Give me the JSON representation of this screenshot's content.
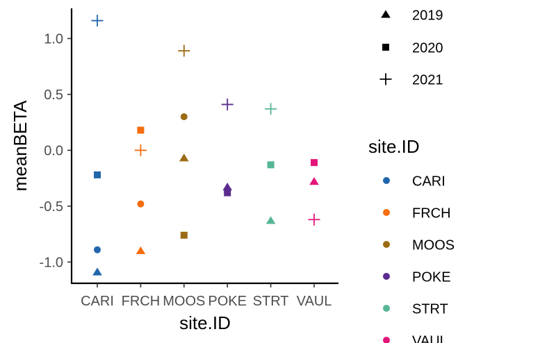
{
  "chart_data": {
    "type": "scatter",
    "xlabel": "site.ID",
    "ylabel": "meanBETA",
    "categories": [
      "CARI",
      "FRCH",
      "MOOS",
      "POKE",
      "STRT",
      "VAUL"
    ],
    "yticks": [
      "-1.0",
      "-0.5",
      "0.0",
      "0.5",
      "1.0"
    ],
    "ytick_values": [
      -1.0,
      -0.5,
      0.0,
      0.5,
      1.0
    ],
    "ylim": [
      -1.19,
      1.27
    ],
    "grid": false,
    "shape_legend": {
      "entries": [
        {
          "label": "2019",
          "shape": "triangle"
        },
        {
          "label": "2020",
          "shape": "square"
        },
        {
          "label": "2021",
          "shape": "plus"
        }
      ]
    },
    "color_legend": {
      "title": "site.ID",
      "entries": [
        {
          "label": "CARI",
          "color": "#2166ac",
          "shape": "circle"
        },
        {
          "label": "FRCH",
          "color": "#f46d0e",
          "shape": "circle"
        },
        {
          "label": "MOOS",
          "color": "#9c6b14",
          "shape": "circle"
        },
        {
          "label": "POKE",
          "color": "#5b2c8f",
          "shape": "circle"
        },
        {
          "label": "STRT",
          "color": "#55b596",
          "shape": "circle"
        },
        {
          "label": "VAUL",
          "color": "#e3157a",
          "shape": "circle"
        }
      ]
    },
    "points": [
      {
        "site": "CARI",
        "shape": "circle",
        "y": -0.89
      },
      {
        "site": "CARI",
        "shape": "triangle",
        "y": -1.09
      },
      {
        "site": "CARI",
        "shape": "square",
        "y": -0.22
      },
      {
        "site": "CARI",
        "shape": "plus",
        "y": 1.16
      },
      {
        "site": "FRCH",
        "shape": "circle",
        "y": -0.48
      },
      {
        "site": "FRCH",
        "shape": "triangle",
        "y": -0.9
      },
      {
        "site": "FRCH",
        "shape": "square",
        "y": 0.18
      },
      {
        "site": "FRCH",
        "shape": "plus",
        "y": 0.0
      },
      {
        "site": "MOOS",
        "shape": "circle",
        "y": 0.3
      },
      {
        "site": "MOOS",
        "shape": "triangle",
        "y": -0.07
      },
      {
        "site": "MOOS",
        "shape": "square",
        "y": -0.76
      },
      {
        "site": "MOOS",
        "shape": "plus",
        "y": 0.89
      },
      {
        "site": "POKE",
        "shape": "triangle",
        "y": -0.33
      },
      {
        "site": "POKE",
        "shape": "square",
        "y": -0.38
      },
      {
        "site": "POKE",
        "shape": "plus",
        "y": 0.41
      },
      {
        "site": "STRT",
        "shape": "triangle",
        "y": -0.63
      },
      {
        "site": "STRT",
        "shape": "square",
        "y": -0.13
      },
      {
        "site": "STRT",
        "shape": "plus",
        "y": 0.37
      },
      {
        "site": "VAUL",
        "shape": "triangle",
        "y": -0.28
      },
      {
        "site": "VAUL",
        "shape": "square",
        "y": -0.11
      },
      {
        "site": "VAUL",
        "shape": "plus",
        "y": -0.62
      }
    ]
  }
}
